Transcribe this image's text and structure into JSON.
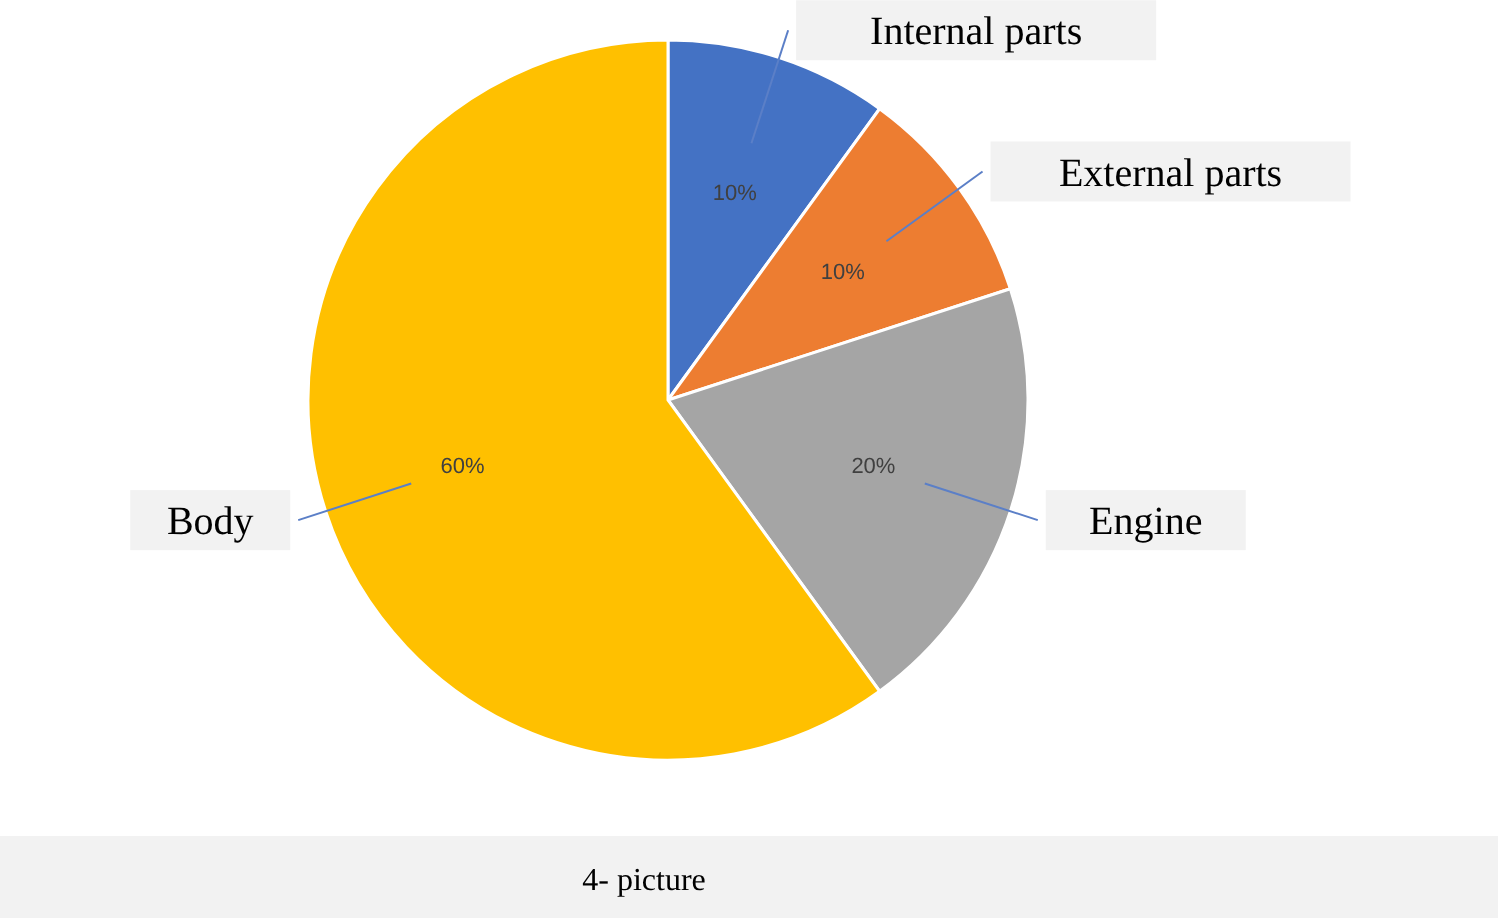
{
  "chart_data": {
    "type": "pie",
    "categories": [
      "Internal parts",
      "External parts",
      "Engine",
      "Body"
    ],
    "values": [
      10,
      10,
      20,
      60
    ],
    "colors": [
      "#4472c4",
      "#ed7d31",
      "#a5a5a5",
      "#ffc000"
    ],
    "value_labels": [
      "10%",
      "10%",
      "20%",
      "60%"
    ],
    "annotations": [
      "4- picture"
    ]
  }
}
